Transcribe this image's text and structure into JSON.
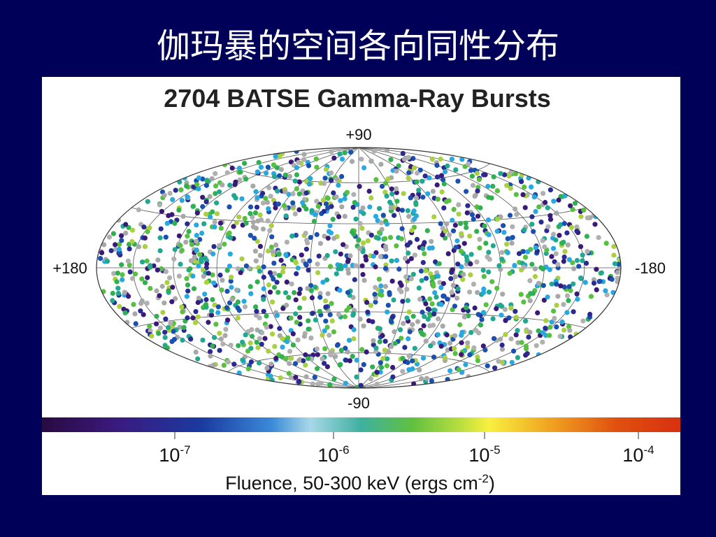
{
  "slide_title": "伽玛暴的空间各向同性分布",
  "figure": {
    "title": "2704 BATSE Gamma-Ray Bursts",
    "axis_labels": {
      "top": "+90",
      "bottom": "-90",
      "left": "+180",
      "right": "-180"
    },
    "colorbar": {
      "ticks": [
        {
          "base": "10",
          "exponent": "-7"
        },
        {
          "base": "10",
          "exponent": "-6"
        },
        {
          "base": "10",
          "exponent": "-5"
        },
        {
          "base": "10",
          "exponent": "-4"
        }
      ],
      "label": {
        "text": "Fluence, 50-300 keV (ergs cm",
        "superscript": "-2",
        "suffix": ")"
      }
    }
  }
}
